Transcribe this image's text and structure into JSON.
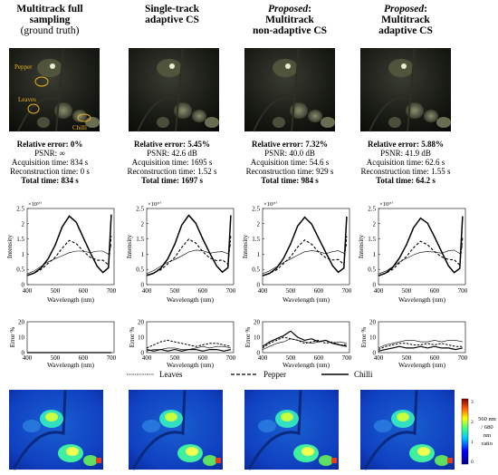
{
  "columns": [
    {
      "title_lines": [
        {
          "text": "Multitrack full",
          "bold": true
        },
        {
          "text": "sampling",
          "bold": true
        },
        {
          "text": "(ground truth)",
          "bold": false
        }
      ],
      "stats": {
        "rel_error": "Relative error: 0%",
        "psnr": "PSNR: ∞",
        "acq": "Acquisition time: 834 s",
        "rec": "Reconstruction time: 0 s",
        "total": "Total time: 834 s"
      },
      "image_labels": [
        "Pepper",
        "Leaves",
        "Chilli"
      ]
    },
    {
      "title_lines": [
        {
          "text": "Single-track",
          "bold": true
        },
        {
          "text": "adaptive CS",
          "bold": true
        }
      ],
      "stats": {
        "rel_error": "Relative error: 5.45%",
        "psnr": "PSNR: 42.6 dB",
        "acq": "Acquisition time: 1695 s",
        "rec": "Reconstruction time: 1.52 s",
        "total": "Total time: 1697 s"
      }
    },
    {
      "title_lines": [
        {
          "text": "Proposed",
          "italic": true,
          "suffix": ":"
        },
        {
          "text": "Multitrack",
          "bold": true
        },
        {
          "text": "non-adaptive CS",
          "bold": true
        }
      ],
      "stats": {
        "rel_error": "Relative error: 7.32%",
        "psnr": "PSNR: 40.0 dB",
        "acq": "Acquisition time: 54.6 s",
        "rec": "Reconstruction time: 929 s",
        "total": "Total time: 984 s"
      }
    },
    {
      "title_lines": [
        {
          "text": "Proposed",
          "italic": true,
          "suffix": ":"
        },
        {
          "text": "Multitrack",
          "bold": true
        },
        {
          "text": "adaptive CS",
          "bold": true
        }
      ],
      "stats": {
        "rel_error": "Relative error: 5.88%",
        "psnr": "PSNR: 41.9 dB",
        "acq": "Acquisition time: 62.6 s",
        "rec": "Reconstruction time: 1.55 s",
        "total": "Total time: 64.2 s"
      }
    }
  ],
  "legend": [
    {
      "label": "Leaves",
      "style": "dotted"
    },
    {
      "label": "Pepper",
      "style": "dashed"
    },
    {
      "label": "Chilli",
      "style": "solid"
    }
  ],
  "colorbar": {
    "label_lines": [
      "560 nm",
      "/ 680",
      "nm",
      "ratio"
    ],
    "ticks": [
      "3",
      "2",
      "1",
      "0"
    ]
  },
  "chart_data": [
    {
      "type": "line",
      "panel": "spectra",
      "xlabel": "Wavelength (nm)",
      "ylabel": "Intensity",
      "y_exponent_label": "×10¹⁰",
      "xticks": [
        "400",
        "500",
        "600",
        "700"
      ],
      "yticks": [
        "0",
        "0.5",
        "1",
        "1.5",
        "2",
        "2.5"
      ],
      "xlim": [
        400,
        710
      ],
      "ylim": [
        0,
        2.5
      ],
      "x": [
        400,
        425,
        450,
        475,
        500,
        525,
        550,
        575,
        600,
        625,
        650,
        670,
        690,
        700
      ],
      "series": [
        {
          "name": "Leaves",
          "style": "thin",
          "values": [
            0.35,
            0.45,
            0.6,
            0.75,
            0.85,
            0.95,
            1.05,
            1.1,
            1.1,
            1.05,
            1.1,
            1.1,
            1.0,
            1.3
          ]
        },
        {
          "name": "Pepper",
          "style": "dashed",
          "values": [
            0.3,
            0.38,
            0.5,
            0.7,
            0.9,
            1.2,
            1.45,
            1.35,
            1.1,
            0.9,
            0.8,
            0.8,
            0.65,
            1.6
          ]
        },
        {
          "name": "Chilli",
          "style": "solid",
          "values": [
            0.3,
            0.38,
            0.55,
            0.85,
            1.3,
            1.9,
            2.25,
            2.05,
            1.55,
            1.05,
            0.6,
            0.4,
            0.55,
            2.3
          ]
        }
      ]
    },
    {
      "type": "line",
      "panel": "error",
      "xlabel": "Wavelength (nm)",
      "ylabel": "Error %",
      "xticks": [
        "400",
        "500",
        "600",
        "700"
      ],
      "yticks": [
        "0",
        "10",
        "20"
      ],
      "xlim": [
        400,
        710
      ],
      "ylim": [
        0,
        20
      ],
      "x": [
        400,
        425,
        450,
        475,
        500,
        525,
        550,
        575,
        600,
        625,
        650,
        675,
        700
      ],
      "columns": [
        {
          "series": [
            {
              "name": "Leaves",
              "values": [
                0,
                0,
                0,
                0,
                0,
                0,
                0,
                0,
                0,
                0,
                0,
                0,
                0
              ]
            },
            {
              "name": "Pepper",
              "values": [
                0,
                0,
                0,
                0,
                0,
                0,
                0,
                0,
                0,
                0,
                0,
                0,
                0
              ]
            },
            {
              "name": "Chilli",
              "values": [
                0,
                0,
                0,
                0,
                0,
                0,
                0,
                0,
                0,
                0,
                0,
                0,
                0
              ]
            }
          ]
        },
        {
          "series": [
            {
              "name": "Leaves",
              "values": [
                1,
                2,
                2,
                3,
                3,
                2,
                2,
                3,
                4,
                3,
                4,
                4,
                3
              ]
            },
            {
              "name": "Pepper",
              "values": [
                3,
                5,
                7,
                8,
                7,
                6,
                5,
                4,
                5,
                6,
                6,
                5,
                4
              ]
            },
            {
              "name": "Chilli",
              "values": [
                2,
                1,
                2,
                1,
                2,
                1,
                2,
                2,
                1,
                2,
                2,
                1,
                2
              ]
            }
          ]
        },
        {
          "series": [
            {
              "name": "Leaves",
              "values": [
                2,
                4,
                6,
                7,
                9,
                8,
                7,
                6,
                7,
                8,
                6,
                7,
                6
              ]
            },
            {
              "name": "Pepper",
              "values": [
                3,
                6,
                8,
                10,
                9,
                8,
                6,
                7,
                8,
                6,
                7,
                5,
                5
              ]
            },
            {
              "name": "Chilli",
              "values": [
                4,
                7,
                9,
                11,
                14,
                10,
                8,
                9,
                7,
                8,
                6,
                5,
                4
              ]
            }
          ]
        },
        {
          "series": [
            {
              "name": "Leaves",
              "values": [
                3,
                5,
                6,
                7,
                8,
                8,
                7,
                7,
                8,
                7,
                8,
                8,
                7
              ]
            },
            {
              "name": "Pepper",
              "values": [
                2,
                4,
                5,
                6,
                6,
                5,
                5,
                6,
                5,
                6,
                5,
                4,
                4
              ]
            },
            {
              "name": "Chilli",
              "values": [
                1,
                2,
                3,
                4,
                3,
                3,
                4,
                3,
                4,
                3,
                3,
                2,
                3
              ]
            }
          ]
        }
      ]
    }
  ],
  "colors": {
    "label": "#e8b020",
    "ellipse": "#e8b020"
  }
}
